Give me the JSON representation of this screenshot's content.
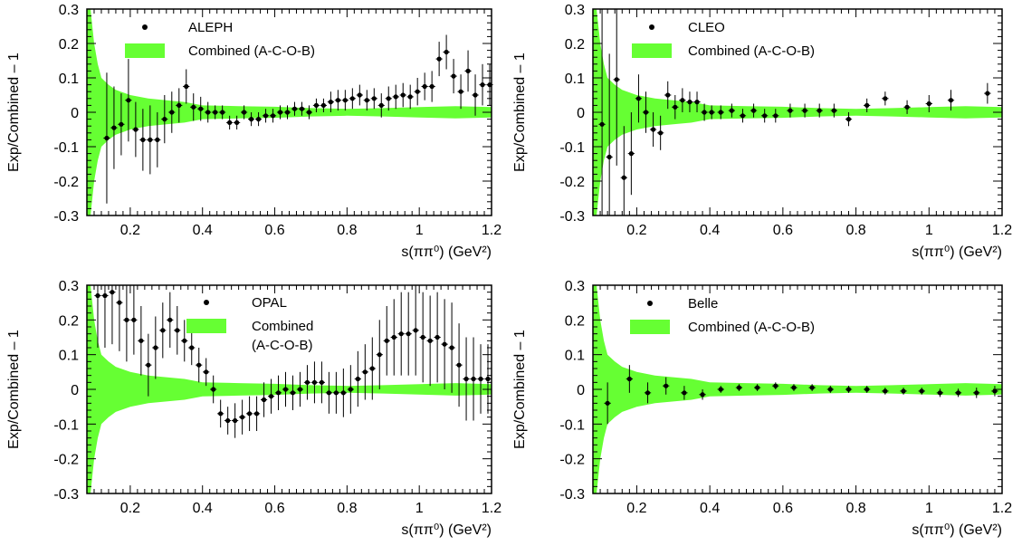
{
  "colors": {
    "band": "#66ff33",
    "marker": "#000000",
    "frame": "#000000"
  },
  "chart_data": [
    {
      "type": "scatter",
      "panel": "top-left",
      "xlabel": "s(ππ⁰) (GeV²)",
      "ylabel": "Exp/Combined – 1",
      "xlim": [
        0.08,
        1.2
      ],
      "ylim": [
        -0.3,
        0.3
      ],
      "xticks": [
        "0.2",
        "0.4",
        "0.6",
        "0.8",
        "1",
        "1.2"
      ],
      "yticks": [
        "0.3",
        "0.2",
        "0.1",
        "0",
        "-0.1",
        "-0.2",
        "-0.3"
      ],
      "legend": {
        "position": "top-left",
        "entries": [
          "ALEPH",
          "Combined (A-C-O-B)"
        ]
      },
      "band": {
        "name": "Combined (A-C-O-B)",
        "x": [
          0.08,
          0.09,
          0.1,
          0.11,
          0.12,
          0.14,
          0.16,
          0.2,
          0.25,
          0.3,
          0.35,
          0.4,
          0.5,
          0.6,
          0.7,
          0.8,
          0.9,
          1.0,
          1.1,
          1.2
        ],
        "half_width": [
          0.3,
          0.3,
          0.2,
          0.14,
          0.1,
          0.08,
          0.065,
          0.05,
          0.04,
          0.035,
          0.03,
          0.02,
          0.018,
          0.016,
          0.012,
          0.01,
          0.012,
          0.015,
          0.018,
          0.015
        ]
      },
      "series": [
        {
          "name": "ALEPH",
          "x": [
            0.135,
            0.155,
            0.175,
            0.195,
            0.215,
            0.235,
            0.255,
            0.275,
            0.295,
            0.315,
            0.335,
            0.355,
            0.375,
            0.395,
            0.415,
            0.435,
            0.455,
            0.475,
            0.495,
            0.515,
            0.535,
            0.555,
            0.575,
            0.595,
            0.615,
            0.635,
            0.655,
            0.675,
            0.695,
            0.715,
            0.735,
            0.755,
            0.775,
            0.795,
            0.815,
            0.835,
            0.855,
            0.875,
            0.895,
            0.915,
            0.935,
            0.955,
            0.975,
            0.995,
            1.015,
            1.035,
            1.055,
            1.075,
            1.095,
            1.115,
            1.135,
            1.155,
            1.175,
            1.195
          ],
          "y": [
            -0.075,
            -0.045,
            -0.035,
            0.035,
            -0.05,
            -0.08,
            -0.08,
            -0.08,
            -0.02,
            0.0,
            0.02,
            0.075,
            0.015,
            0.01,
            0.0,
            0.0,
            0.0,
            -0.03,
            -0.03,
            0.0,
            -0.02,
            -0.02,
            -0.01,
            -0.01,
            0.0,
            0.0,
            0.01,
            0.01,
            0.0,
            0.02,
            0.02,
            0.03,
            0.035,
            0.035,
            0.04,
            0.05,
            0.035,
            0.04,
            0.02,
            0.04,
            0.045,
            0.05,
            0.045,
            0.06,
            0.075,
            0.075,
            0.155,
            0.175,
            0.105,
            0.06,
            0.12,
            0.05,
            0.08,
            0.08
          ],
          "err": [
            0.19,
            0.12,
            0.09,
            0.12,
            0.08,
            0.09,
            0.1,
            0.08,
            0.07,
            0.06,
            0.05,
            0.05,
            0.04,
            0.035,
            0.03,
            0.02,
            0.02,
            0.02,
            0.02,
            0.02,
            0.02,
            0.02,
            0.02,
            0.02,
            0.02,
            0.02,
            0.02,
            0.02,
            0.02,
            0.02,
            0.02,
            0.03,
            0.03,
            0.03,
            0.03,
            0.03,
            0.03,
            0.03,
            0.035,
            0.035,
            0.035,
            0.035,
            0.035,
            0.04,
            0.04,
            0.045,
            0.05,
            0.05,
            0.05,
            0.05,
            0.06,
            0.06,
            0.06,
            0.06
          ]
        }
      ]
    },
    {
      "type": "scatter",
      "panel": "top-right",
      "xlabel": "s(ππ⁰) (GeV²)",
      "ylabel": "Exp/Combined – 1",
      "xlim": [
        0.08,
        1.2
      ],
      "ylim": [
        -0.3,
        0.3
      ],
      "xticks": [
        "0.2",
        "0.4",
        "0.6",
        "0.8",
        "1",
        "1.2"
      ],
      "yticks": [
        "0.3",
        "0.2",
        "0.1",
        "0",
        "-0.1",
        "-0.2",
        "-0.3"
      ],
      "legend": {
        "position": "top-left",
        "entries": [
          "CLEO",
          "Combined (A-C-O-B)"
        ]
      },
      "band": {
        "name": "Combined (A-C-O-B)",
        "x": [
          0.08,
          0.09,
          0.1,
          0.11,
          0.12,
          0.14,
          0.16,
          0.2,
          0.25,
          0.3,
          0.35,
          0.4,
          0.5,
          0.6,
          0.7,
          0.8,
          0.9,
          1.0,
          1.1,
          1.2
        ],
        "half_width": [
          0.3,
          0.3,
          0.2,
          0.14,
          0.1,
          0.08,
          0.065,
          0.05,
          0.04,
          0.035,
          0.03,
          0.02,
          0.018,
          0.016,
          0.012,
          0.01,
          0.012,
          0.015,
          0.018,
          0.015
        ]
      },
      "series": [
        {
          "name": "CLEO",
          "x": [
            0.105,
            0.125,
            0.145,
            0.165,
            0.185,
            0.205,
            0.225,
            0.245,
            0.265,
            0.285,
            0.305,
            0.325,
            0.345,
            0.365,
            0.385,
            0.405,
            0.43,
            0.46,
            0.49,
            0.52,
            0.55,
            0.58,
            0.62,
            0.66,
            0.7,
            0.74,
            0.78,
            0.83,
            0.88,
            0.94,
            1.0,
            1.06,
            1.16
          ],
          "y": [
            -0.035,
            -0.13,
            0.095,
            -0.19,
            -0.12,
            0.04,
            0.0,
            -0.05,
            -0.06,
            0.05,
            0.015,
            0.035,
            0.03,
            0.03,
            0.0,
            0.0,
            0.0,
            0.005,
            -0.01,
            0.005,
            -0.01,
            -0.01,
            0.005,
            0.005,
            0.005,
            0.005,
            -0.02,
            0.02,
            0.04,
            0.015,
            0.025,
            0.035,
            0.055
          ],
          "err": [
            0.35,
            0.3,
            0.25,
            0.15,
            0.12,
            0.07,
            0.06,
            0.05,
            0.05,
            0.04,
            0.035,
            0.035,
            0.03,
            0.03,
            0.025,
            0.02,
            0.02,
            0.02,
            0.02,
            0.02,
            0.02,
            0.02,
            0.02,
            0.02,
            0.02,
            0.02,
            0.02,
            0.02,
            0.02,
            0.02,
            0.025,
            0.03,
            0.03
          ]
        }
      ]
    },
    {
      "type": "scatter",
      "panel": "bottom-left",
      "xlabel": "s(ππ⁰) (GeV²)",
      "ylabel": "Exp/Combined – 1",
      "xlim": [
        0.08,
        1.2
      ],
      "ylim": [
        -0.3,
        0.3
      ],
      "xticks": [
        "0.2",
        "0.4",
        "0.6",
        "0.8",
        "1",
        "1.2"
      ],
      "yticks": [
        "0.3",
        "0.2",
        "0.1",
        "0",
        "-0.1",
        "-0.2",
        "-0.3"
      ],
      "legend": {
        "position": "top-center",
        "entries": [
          "OPAL",
          "Combined",
          "(A-C-O-B)"
        ]
      },
      "band": {
        "name": "Combined (A-C-O-B)",
        "x": [
          0.08,
          0.09,
          0.1,
          0.11,
          0.12,
          0.14,
          0.16,
          0.2,
          0.25,
          0.3,
          0.35,
          0.4,
          0.5,
          0.6,
          0.7,
          0.8,
          0.9,
          1.0,
          1.1,
          1.2
        ],
        "half_width": [
          0.3,
          0.3,
          0.2,
          0.14,
          0.1,
          0.08,
          0.065,
          0.05,
          0.04,
          0.035,
          0.03,
          0.02,
          0.018,
          0.016,
          0.012,
          0.01,
          0.012,
          0.015,
          0.018,
          0.015
        ]
      },
      "series": [
        {
          "name": "OPAL",
          "x": [
            0.11,
            0.13,
            0.15,
            0.17,
            0.19,
            0.21,
            0.23,
            0.25,
            0.27,
            0.29,
            0.31,
            0.33,
            0.35,
            0.37,
            0.39,
            0.41,
            0.43,
            0.45,
            0.47,
            0.49,
            0.51,
            0.53,
            0.55,
            0.57,
            0.59,
            0.61,
            0.63,
            0.65,
            0.67,
            0.69,
            0.71,
            0.73,
            0.75,
            0.77,
            0.79,
            0.81,
            0.83,
            0.85,
            0.87,
            0.89,
            0.91,
            0.93,
            0.95,
            0.97,
            0.99,
            1.01,
            1.03,
            1.05,
            1.07,
            1.09,
            1.11,
            1.13,
            1.15,
            1.17,
            1.19
          ],
          "y": [
            0.27,
            0.27,
            0.28,
            0.25,
            0.2,
            0.2,
            0.14,
            0.07,
            0.12,
            0.17,
            0.2,
            0.17,
            0.14,
            0.12,
            0.07,
            0.05,
            0.0,
            -0.07,
            -0.09,
            -0.09,
            -0.08,
            -0.07,
            -0.07,
            -0.03,
            -0.02,
            -0.01,
            0.0,
            -0.01,
            0.0,
            0.02,
            0.02,
            0.02,
            -0.01,
            -0.01,
            -0.01,
            0.0,
            0.03,
            0.05,
            0.06,
            0.1,
            0.14,
            0.15,
            0.16,
            0.16,
            0.17,
            0.15,
            0.14,
            0.15,
            0.13,
            0.12,
            0.07,
            0.03,
            0.03,
            0.03,
            0.03
          ],
          "err": [
            0.15,
            0.15,
            0.15,
            0.14,
            0.12,
            0.1,
            0.1,
            0.09,
            0.09,
            0.08,
            0.08,
            0.07,
            0.06,
            0.05,
            0.05,
            0.04,
            0.04,
            0.04,
            0.04,
            0.05,
            0.05,
            0.05,
            0.05,
            0.05,
            0.05,
            0.05,
            0.05,
            0.05,
            0.05,
            0.05,
            0.06,
            0.06,
            0.06,
            0.06,
            0.07,
            0.07,
            0.08,
            0.08,
            0.09,
            0.1,
            0.1,
            0.11,
            0.12,
            0.12,
            0.13,
            0.13,
            0.13,
            0.13,
            0.13,
            0.13,
            0.12,
            0.12,
            0.12,
            0.1,
            0.1
          ]
        }
      ]
    },
    {
      "type": "scatter",
      "panel": "bottom-right",
      "xlabel": "s(ππ⁰) (GeV²)",
      "ylabel": "Exp/Combined – 1",
      "xlim": [
        0.08,
        1.2
      ],
      "ylim": [
        -0.3,
        0.3
      ],
      "xticks": [
        "0.2",
        "0.4",
        "0.6",
        "0.8",
        "1",
        "1.2"
      ],
      "yticks": [
        "0.3",
        "0.2",
        "0.1",
        "0",
        "-0.1",
        "-0.2",
        "-0.3"
      ],
      "legend": {
        "position": "top-center",
        "entries": [
          "Belle",
          "Combined (A-C-O-B)"
        ]
      },
      "band": {
        "name": "Combined (A-C-O-B)",
        "x": [
          0.08,
          0.09,
          0.1,
          0.11,
          0.12,
          0.14,
          0.16,
          0.2,
          0.25,
          0.3,
          0.35,
          0.4,
          0.5,
          0.6,
          0.7,
          0.8,
          0.9,
          1.0,
          1.1,
          1.2
        ],
        "half_width": [
          0.3,
          0.3,
          0.2,
          0.14,
          0.1,
          0.08,
          0.065,
          0.05,
          0.04,
          0.035,
          0.03,
          0.02,
          0.018,
          0.016,
          0.012,
          0.01,
          0.012,
          0.015,
          0.018,
          0.015
        ]
      },
      "series": [
        {
          "name": "Belle",
          "x": [
            0.12,
            0.18,
            0.23,
            0.28,
            0.33,
            0.38,
            0.43,
            0.48,
            0.53,
            0.58,
            0.63,
            0.68,
            0.73,
            0.78,
            0.83,
            0.88,
            0.93,
            0.98,
            1.03,
            1.08,
            1.13,
            1.18
          ],
          "y": [
            -0.04,
            0.03,
            -0.01,
            0.01,
            -0.01,
            -0.015,
            0.0,
            0.005,
            0.005,
            0.01,
            0.005,
            0.005,
            0.0,
            0.0,
            0.0,
            -0.005,
            -0.005,
            -0.005,
            -0.01,
            -0.01,
            -0.01,
            -0.005
          ],
          "err": [
            0.06,
            0.04,
            0.03,
            0.025,
            0.02,
            0.015,
            0.01,
            0.01,
            0.01,
            0.01,
            0.01,
            0.01,
            0.01,
            0.01,
            0.01,
            0.01,
            0.01,
            0.01,
            0.012,
            0.012,
            0.015,
            0.015
          ]
        }
      ]
    }
  ]
}
